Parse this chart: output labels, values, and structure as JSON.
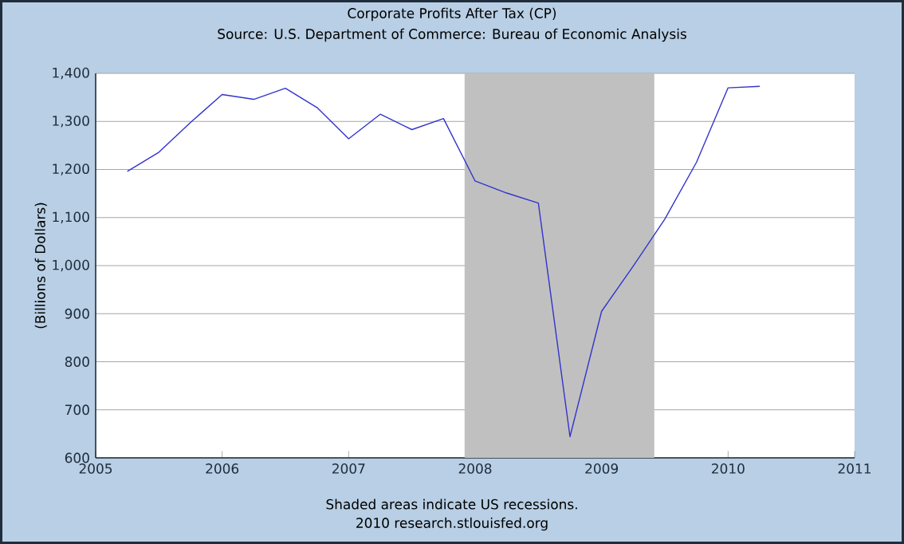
{
  "chart_data": {
    "type": "line",
    "title": "Corporate Profits After Tax (CP)",
    "subtitle": "Source: U.S. Department of Commerce: Bureau of Economic Analysis",
    "ylabel": "(Billions of Dollars)",
    "annotations": [
      "Shaded areas indicate US recessions.",
      "2010 research.stlouisfed.org"
    ],
    "x": [
      "2005-04",
      "2005-07",
      "2005-10",
      "2006-01",
      "2006-04",
      "2006-07",
      "2006-10",
      "2007-01",
      "2007-04",
      "2007-07",
      "2007-10",
      "2008-01",
      "2008-04",
      "2008-07",
      "2008-10",
      "2009-01",
      "2009-04",
      "2009-07",
      "2009-10",
      "2010-01",
      "2010-04"
    ],
    "series": [
      {
        "color": "#3333cc",
        "values": [
          1196,
          1236,
          1298,
          1356,
          1346,
          1369,
          1329,
          1264,
          1315,
          1283,
          1306,
          1176,
          1151,
          1130,
          644,
          905,
          999,
          1097,
          1215,
          1370,
          1373
        ]
      }
    ],
    "xlim": [
      "2005",
      "2011"
    ],
    "xticks": [
      "2005",
      "2006",
      "2007",
      "2008",
      "2009",
      "2010",
      "2011"
    ],
    "ylim": [
      600,
      1400
    ],
    "yticks": [
      {
        "value": 600,
        "label": "600"
      },
      {
        "value": 700,
        "label": "700"
      },
      {
        "value": 800,
        "label": "800"
      },
      {
        "value": 900,
        "label": "900"
      },
      {
        "value": 1000,
        "label": "1,000"
      },
      {
        "value": 1100,
        "label": "1,100"
      },
      {
        "value": 1200,
        "label": "1,200"
      },
      {
        "value": 1300,
        "label": "1,300"
      },
      {
        "value": 1400,
        "label": "1,400"
      }
    ],
    "bands": [
      {
        "axis": "x",
        "from": "2007-12",
        "to": "2009-06",
        "color": "#c0c0c0"
      }
    ],
    "grid": "y",
    "marker": "none",
    "line_style": "solid"
  }
}
